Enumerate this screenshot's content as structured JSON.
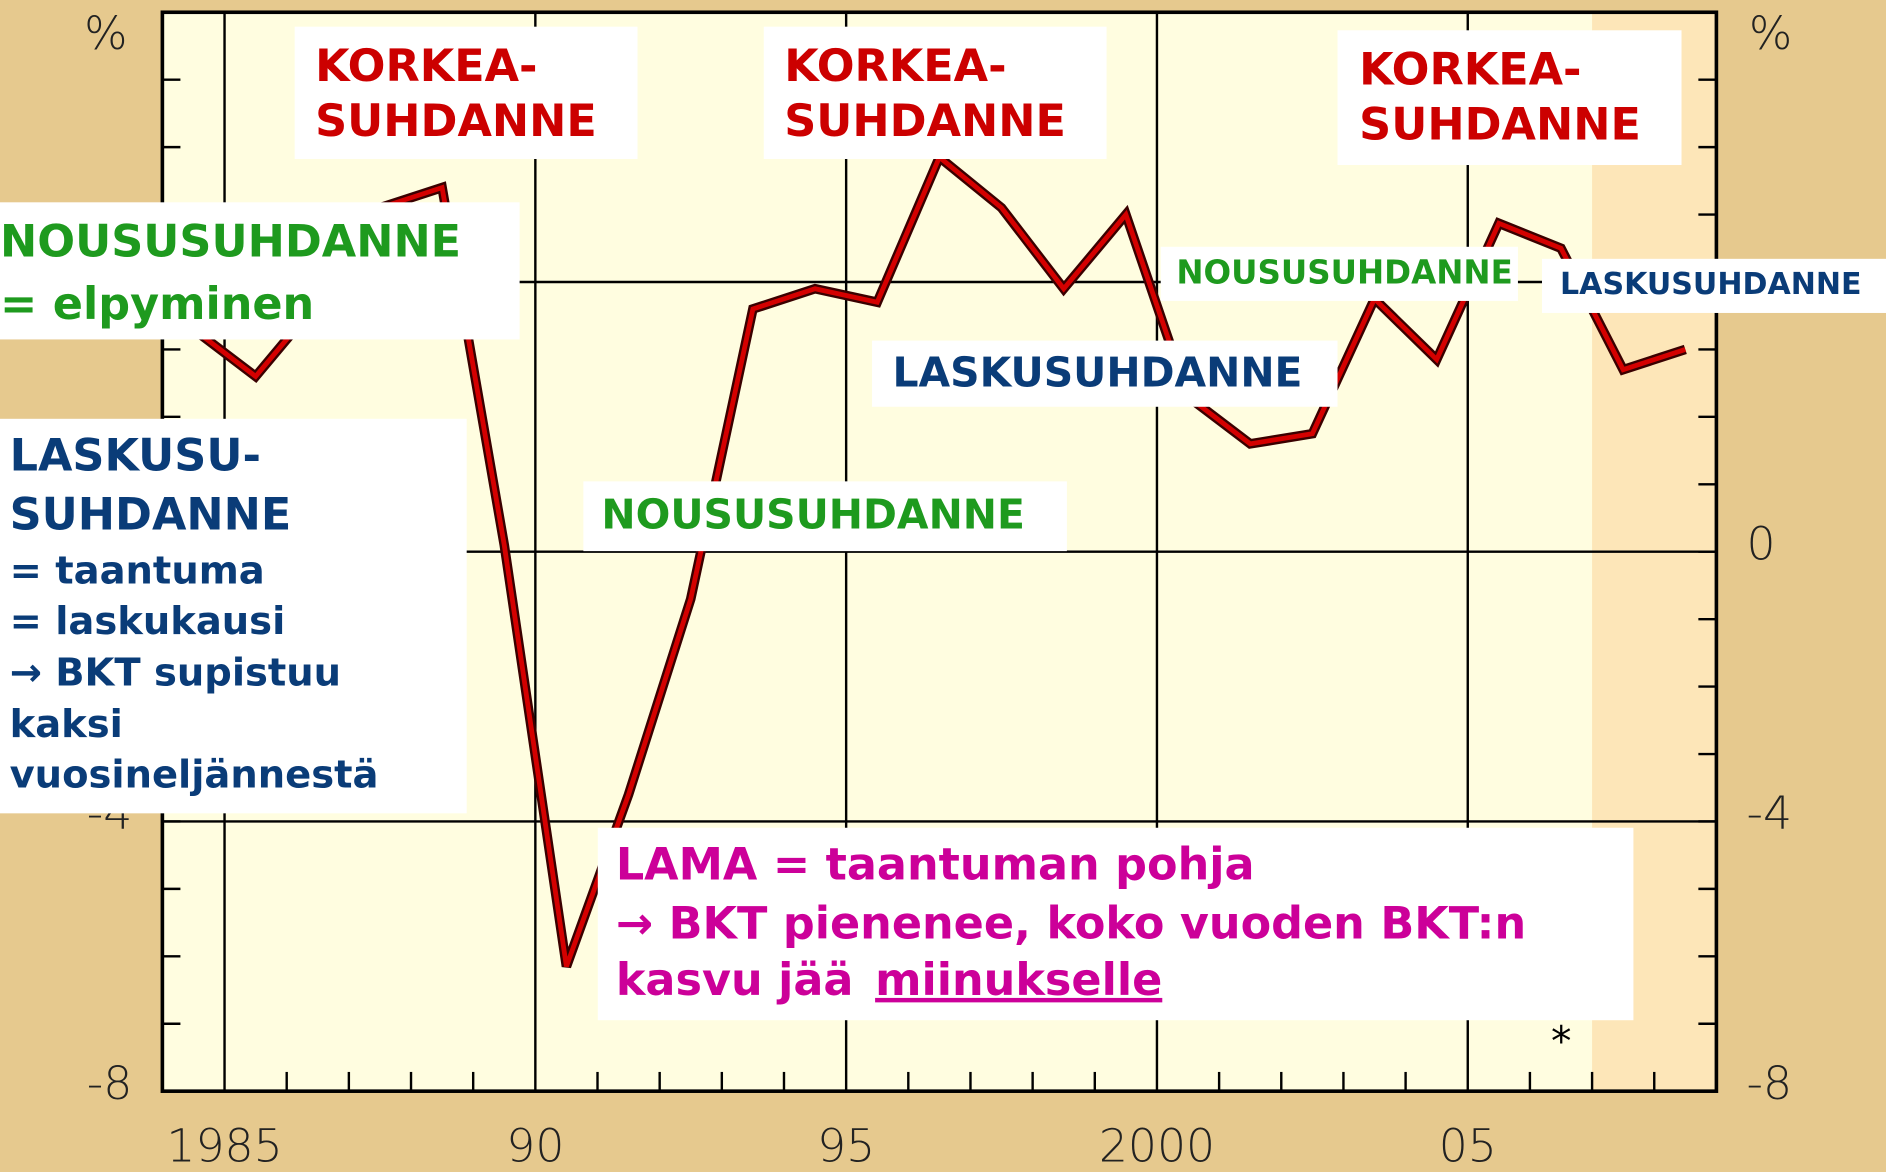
{
  "chart_data": {
    "type": "line",
    "y_label": "%",
    "x": [
      1984.5,
      1985.5,
      1986.5,
      1987.5,
      1988.5,
      1989.5,
      1990.5,
      1991.5,
      1992.5,
      1993.5,
      1994.5,
      1995.5,
      1996.5,
      1997.5,
      1998.5,
      1999.5,
      2000.5,
      2001.5,
      2002.5,
      2003.5,
      2004.5,
      2005.5,
      2006.5,
      2007.5,
      2008.5
    ],
    "series": [
      {
        "color": "#d40000",
        "values": [
          3.3,
          2.6,
          3.7,
          5.1,
          5.4,
          0.1,
          -6.15,
          -3.6,
          -0.7,
          3.6,
          3.9,
          3.7,
          5.85,
          5.1,
          3.9,
          5.0,
          2.3,
          1.6,
          1.75,
          3.75,
          2.85,
          4.87,
          4.5,
          2.7,
          3.0
        ]
      }
    ],
    "xlim": [
      1984,
      2009
    ],
    "xticks": [
      {
        "value": 1985,
        "label": "1985"
      },
      {
        "value": 1990,
        "label": "90"
      },
      {
        "value": 1995,
        "label": "95"
      },
      {
        "value": 2000,
        "label": "2000"
      },
      {
        "value": 2005,
        "label": "05"
      }
    ],
    "x_minor_ticks": [
      1986,
      1987,
      1988,
      1989,
      1991,
      1992,
      1993,
      1994,
      1996,
      1997,
      1998,
      1999,
      2001,
      2002,
      2003,
      2004,
      2006,
      2007,
      2008
    ],
    "ylim": [
      -8,
      8
    ],
    "yticks": [
      -8,
      -4,
      0
    ],
    "y_gridlines": [
      -4,
      0,
      4
    ],
    "y_minor_ticks": [
      -7,
      -6,
      -5,
      -3,
      -2,
      -1,
      1,
      2,
      3,
      5,
      6,
      7
    ],
    "forecast_from": 2007,
    "forecast_mark": "*",
    "annotations": [
      {
        "lines": [
          "KORKEA-",
          "SUHDANNE"
        ],
        "color": "#cc0000"
      },
      {
        "lines": [
          "KORKEA-",
          "SUHDANNE"
        ],
        "color": "#cc0000"
      },
      {
        "lines": [
          "KORKEA-",
          "SUHDANNE"
        ],
        "color": "#cc0000"
      },
      {
        "lines": [
          "NOUSUSUHDANNE",
          "= elpyminen"
        ],
        "color": "#1e9a1e"
      },
      {
        "lines": [
          "LASKUSU-",
          "SUHDANNE",
          "= taantuma",
          "= laskukausi",
          "→ BKT supistuu",
          "kaksi",
          "vuosineljännestä"
        ],
        "color": "#0a3c78"
      },
      {
        "lines": [
          "NOUSUSUHDANNE"
        ],
        "color": "#1e9a1e"
      },
      {
        "lines": [
          "LASKUSUHDANNE"
        ],
        "color": "#0a3c78"
      },
      {
        "lines": [
          "NOUSUSUHDANNE"
        ],
        "color": "#1e9a1e"
      },
      {
        "lines": [
          "LASKUSUHDANNE"
        ],
        "color": "#0a3c78"
      }
    ],
    "lama": {
      "lines": [
        "LAMA = taantuman pohja",
        "→ BKT pienenee, koko vuoden BKT:n",
        "kasvu jää"
      ],
      "underlined": "miinukselle",
      "color": "#cc0099"
    }
  }
}
